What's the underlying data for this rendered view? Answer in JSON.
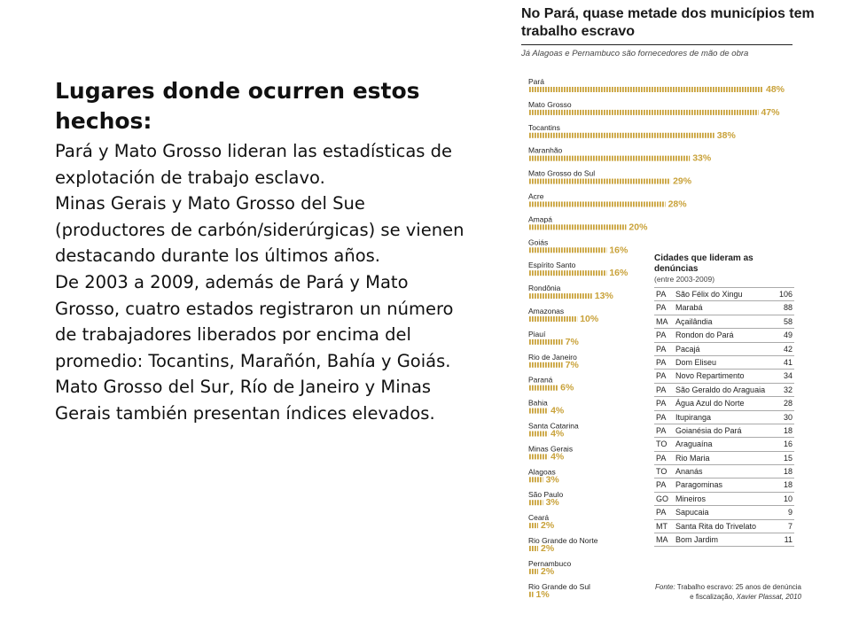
{
  "text": {
    "heading": "Lugares donde ocurren estos hechos:",
    "paragraphs": [
      "Pará y Mato Grosso lideran las estadísticas de explotación de trabajo esclavo.",
      "Minas Gerais y Mato Grosso del Sue (productores de carbón/siderúrgicas) se vienen destacando durante los últimos años.",
      "De 2003 a 2009, además de Pará y Mato Grosso, cuatro estados registraron un número de trabajadores liberados por encima del promedio: Tocantins, Marañón, Bahía y Goiás. Mato Grosso del Sur, Río de Janeiro y Minas Gerais también presentan índices elevados."
    ]
  },
  "chart_data": {
    "type": "bar",
    "orientation": "horizontal",
    "title": "No Pará, quase metade dos municípios tem trabalho escravo",
    "subtitle": "Já Alagoas e Pernambuco são fornecedores de mão de obra",
    "unit": "%",
    "categories": [
      "Pará",
      "Mato Grosso",
      "Tocantins",
      "Maranhão",
      "Mato Grosso do Sul",
      "Acre",
      "Amapá",
      "Goiás",
      "Espírito Santo",
      "Rondônia",
      "Amazonas",
      "Piauí",
      "Rio de Janeiro",
      "Paraná",
      "Bahia",
      "Santa Catarina",
      "Minas Gerais",
      "Alagoas",
      "São Paulo",
      "Ceará",
      "Rio Grande do Norte",
      "Pernambuco",
      "Rio Grande do Sul"
    ],
    "values": [
      48,
      47,
      38,
      33,
      29,
      28,
      20,
      16,
      16,
      13,
      10,
      7,
      7,
      6,
      4,
      4,
      4,
      3,
      3,
      2,
      2,
      2,
      1
    ],
    "bar_color": "#c9a23a",
    "table": {
      "title": "Cidades que lideram as denúncias",
      "period": "(entre 2003-2009)",
      "rows": [
        [
          "PA",
          "São Félix do Xingu",
          "106"
        ],
        [
          "PA",
          "Marabá",
          "88"
        ],
        [
          "MA",
          "Açailândia",
          "58"
        ],
        [
          "PA",
          "Rondon do Pará",
          "49"
        ],
        [
          "PA",
          "Pacajá",
          "42"
        ],
        [
          "PA",
          "Dom Eliseu",
          "41"
        ],
        [
          "PA",
          "Novo Repartimento",
          "34"
        ],
        [
          "PA",
          "São Geraldo do Araguaia",
          "32"
        ],
        [
          "PA",
          "Água Azul do Norte",
          "28"
        ],
        [
          "PA",
          "Itupiranga",
          "30"
        ],
        [
          "PA",
          "Goianésia do Pará",
          "18"
        ],
        [
          "TO",
          "Araguaína",
          "16"
        ],
        [
          "PA",
          "Rio Maria",
          "15"
        ],
        [
          "TO",
          "Ananás",
          "18"
        ],
        [
          "PA",
          "Paragominas",
          "18"
        ],
        [
          "GO",
          "Mineiros",
          "10"
        ],
        [
          "PA",
          "Sapucaia",
          "9"
        ],
        [
          "MT",
          "Santa Rita do Trivelato",
          "7"
        ],
        [
          "MA",
          "Bom Jardim",
          "11"
        ]
      ]
    },
    "source": {
      "label": "Fonte:",
      "text": "Trabalho escravo: 25 anos de denúncia e fiscalização,",
      "author": "Xavier Plassat, 2010"
    }
  }
}
